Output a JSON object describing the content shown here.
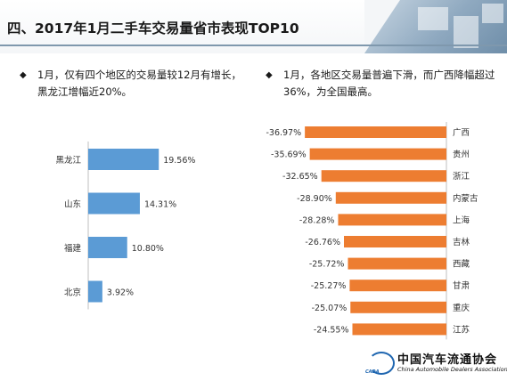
{
  "title": "四、2017年1月二手车交易量省市表现TOP10",
  "bullets": {
    "left": "1月，仅有四个地区的交易量较12月有增长，黑龙江增幅近20%。",
    "right": "1月，各地区交易量普遍下滑，而广西降幅超过36%，为全国最高。",
    "mark": "◆"
  },
  "colors": {
    "increase_bar": "#5b9bd5",
    "decrease_bar": "#ed7d31",
    "rule": "#7f98ad"
  },
  "chart_data": [
    {
      "type": "bar",
      "orientation": "horizontal",
      "categories": [
        "黑龙江",
        "山东",
        "福建",
        "北京"
      ],
      "values": [
        19.56,
        14.31,
        10.8,
        3.92
      ],
      "value_labels": [
        "19.56%",
        "14.31%",
        "10.80%",
        "3.92%"
      ],
      "unit": "%",
      "xlim": [
        0,
        20
      ],
      "grid": false,
      "legend": "none"
    },
    {
      "type": "bar",
      "orientation": "horizontal",
      "categories": [
        "广西",
        "贵州",
        "浙江",
        "内蒙古",
        "上海",
        "吉林",
        "西藏",
        "甘肃",
        "重庆",
        "江苏"
      ],
      "values": [
        -36.97,
        -35.69,
        -32.65,
        -28.9,
        -28.28,
        -26.76,
        -25.72,
        -25.27,
        -25.07,
        -24.55
      ],
      "value_labels": [
        "-36.97%",
        "-35.69%",
        "-32.65%",
        "-28.90%",
        "-28.28%",
        "-26.76%",
        "-25.72%",
        "-25.27%",
        "-25.07%",
        "-24.55%"
      ],
      "unit": "%",
      "xlim": [
        -37,
        0
      ],
      "grid": false,
      "legend": "none"
    }
  ],
  "footer": {
    "org_name": "中国汽车流通协会",
    "org_name_en": "China Automobile Dealers Association",
    "logo_caption": "CADA"
  }
}
